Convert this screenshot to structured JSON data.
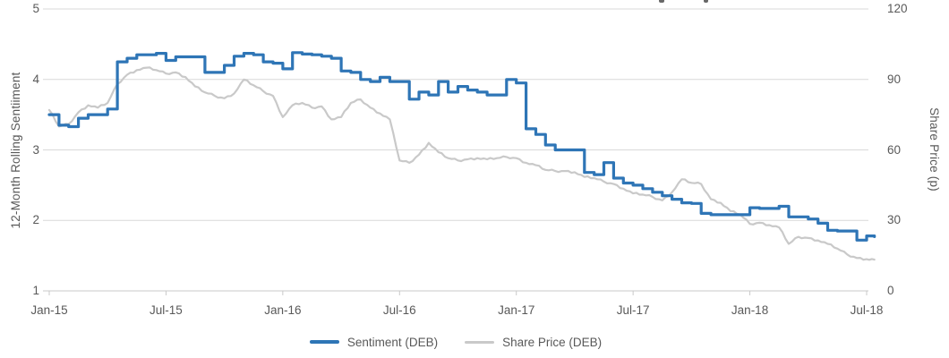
{
  "chart_data": {
    "type": "line",
    "cropped_title": {
      "glyph_tips_visible": 2,
      "note_text": ""
    },
    "left_axis": {
      "title": "12-Month Rolling Sentiiment",
      "ticks": [
        5,
        4,
        3,
        2,
        1
      ],
      "range": [
        1,
        5
      ]
    },
    "right_axis": {
      "title": "Share Price (p)",
      "ticks": [
        120,
        90,
        60,
        30,
        0
      ],
      "range": [
        0,
        120
      ]
    },
    "x_axis": {
      "tick_labels": [
        "Jan-15",
        "Jul-15",
        "Jan-16",
        "Jul-16",
        "Jan-17",
        "Jul-17",
        "Jan-18",
        "Jul-18"
      ],
      "months_span": 42
    },
    "grid": true,
    "legend_position": "bottom",
    "x_months": [
      0,
      0.5,
      1,
      1.5,
      2,
      2.5,
      3,
      3.5,
      4,
      4.5,
      5,
      5.5,
      6,
      6.5,
      7,
      7.5,
      8,
      8.5,
      9,
      9.5,
      10,
      10.5,
      11,
      11.5,
      12,
      12.5,
      13,
      13.5,
      14,
      14.5,
      15,
      15.5,
      16,
      16.5,
      17,
      17.5,
      18,
      18.5,
      19,
      19.5,
      20,
      20.5,
      21,
      21.5,
      22,
      22.5,
      23,
      23.5,
      24,
      24.5,
      25,
      25.5,
      26,
      26.5,
      27,
      27.5,
      28,
      28.5,
      29,
      29.5,
      30,
      30.5,
      31,
      31.5,
      32,
      32.5,
      33,
      33.5,
      34,
      34.5,
      35,
      35.5,
      36,
      36.5,
      37,
      37.5,
      38,
      38.5,
      39,
      39.5,
      40,
      40.5,
      41,
      41.5,
      42,
      42.4
    ],
    "series": [
      {
        "name": "Sentiment (DEB)",
        "axis": "left",
        "color": "#2E75B6",
        "style": "step",
        "stroke_width": 3.2,
        "values": [
          3.5,
          3.35,
          3.33,
          3.45,
          3.5,
          3.5,
          3.58,
          4.25,
          4.3,
          4.35,
          4.35,
          4.37,
          4.27,
          4.32,
          4.32,
          4.32,
          4.1,
          4.1,
          4.2,
          4.33,
          4.37,
          4.35,
          4.25,
          4.23,
          4.15,
          4.38,
          4.36,
          4.35,
          4.33,
          4.3,
          4.12,
          4.1,
          4.0,
          3.97,
          4.03,
          3.97,
          3.97,
          3.72,
          3.82,
          3.78,
          3.97,
          3.82,
          3.9,
          3.85,
          3.82,
          3.78,
          3.78,
          4.0,
          3.95,
          3.3,
          3.22,
          3.07,
          3.0,
          3.0,
          3.0,
          2.68,
          2.65,
          2.82,
          2.6,
          2.53,
          2.5,
          2.45,
          2.4,
          2.35,
          2.3,
          2.25,
          2.24,
          2.1,
          2.08,
          2.08,
          2.08,
          2.08,
          2.18,
          2.17,
          2.17,
          2.2,
          2.05,
          2.05,
          2.02,
          1.96,
          1.86,
          1.85,
          1.85,
          1.72,
          1.78,
          1.77
        ]
      },
      {
        "name": "Share Price (DEB)",
        "axis": "right",
        "color": "#C9C9C9",
        "style": "line",
        "stroke_width": 2.2,
        "values": [
          77,
          70,
          71,
          76,
          79,
          78,
          80,
          88,
          92,
          94,
          95,
          94,
          92.5,
          93,
          91,
          87,
          84.5,
          83,
          82,
          84,
          90,
          87.5,
          85,
          83,
          74,
          79,
          80,
          78,
          78.5,
          73,
          74,
          80,
          81.5,
          78,
          75.5,
          73,
          55.5,
          54.5,
          58,
          63,
          59,
          56.5,
          55.5,
          56,
          56.5,
          56,
          56.5,
          57,
          56.5,
          54.5,
          53.5,
          51.5,
          51,
          51,
          50.5,
          48.5,
          48,
          46.5,
          45.5,
          43.5,
          41.5,
          41,
          40,
          38.5,
          42,
          47.5,
          46,
          45.5,
          39,
          37.5,
          34,
          32.5,
          28.5,
          29,
          28,
          27,
          20,
          23,
          22.5,
          21.5,
          20,
          18,
          15.5,
          14,
          13.5,
          13.3
        ]
      }
    ]
  },
  "colors": {
    "gridline": "#D9D9D9",
    "axis_line": "#C9C9C9",
    "tick_mark": "#C9C9C9",
    "text": "#595959"
  }
}
